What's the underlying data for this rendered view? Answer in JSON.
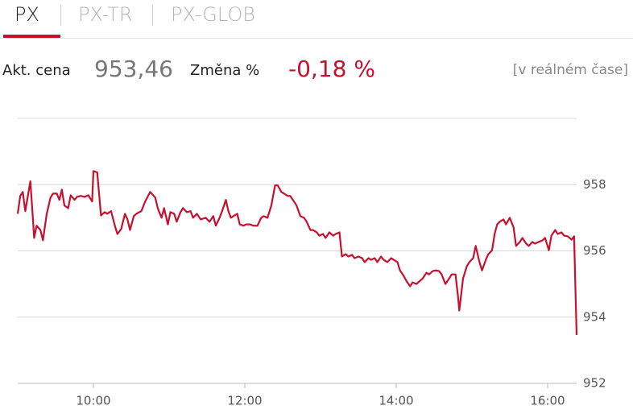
{
  "tabs": [
    "PX",
    "PX-TR",
    "PX-GLOB"
  ],
  "quote": {
    "price_label": "Akt. cena",
    "price": "953,46",
    "change_label": "Změna %",
    "change": "-0,18 %",
    "note": "[v reálném čase]"
  },
  "chart_data": {
    "type": "line",
    "x": [
      "09:00",
      "09:02",
      "09:04",
      "09:06",
      "09:10",
      "09:12",
      "09:13",
      "09:15",
      "09:18",
      "09:20",
      "09:23",
      "09:26",
      "09:28",
      "09:31",
      "09:33",
      "09:35",
      "09:37",
      "09:40",
      "09:42",
      "09:45",
      "09:47",
      "09:50",
      "09:53",
      "09:56",
      "09:59",
      "10:00",
      "10:03",
      "10:06",
      "10:09",
      "10:11",
      "10:14",
      "10:17",
      "10:19",
      "10:22",
      "10:25",
      "10:27",
      "10:29",
      "10:32",
      "10:34",
      "10:38",
      "10:41",
      "10:45",
      "10:49",
      "10:51",
      "10:54",
      "10:56",
      "10:59",
      "11:01",
      "11:04",
      "11:06",
      "11:09",
      "11:11",
      "11:14",
      "11:17",
      "11:19",
      "11:22",
      "11:25",
      "11:29",
      "11:32",
      "11:35",
      "11:37",
      "11:40",
      "11:42",
      "11:45",
      "11:47",
      "11:49",
      "11:51",
      "11:54",
      "11:56",
      "11:59",
      "12:01",
      "12:04",
      "12:07",
      "12:10",
      "12:13",
      "12:15",
      "12:18",
      "12:21",
      "12:24",
      "12:26",
      "12:29",
      "12:31",
      "12:34",
      "12:36",
      "12:39",
      "12:41",
      "12:44",
      "12:47",
      "12:49",
      "12:52",
      "12:54",
      "12:57",
      "12:59",
      "13:02",
      "13:04",
      "13:07",
      "13:10",
      "13:12",
      "13:15",
      "13:17",
      "13:20",
      "13:22",
      "13:25",
      "13:27",
      "13:30",
      "13:33",
      "13:35",
      "13:38",
      "13:40",
      "13:43",
      "13:45",
      "13:48",
      "13:50",
      "13:53",
      "13:56",
      "13:58",
      "14:01",
      "14:03",
      "14:06",
      "14:08",
      "14:11",
      "14:13",
      "14:16",
      "14:19",
      "14:21",
      "14:24",
      "14:26",
      "14:29",
      "14:31",
      "14:34",
      "14:36",
      "14:39",
      "14:42",
      "14:44",
      "14:47",
      "14:49",
      "14:50",
      "14:53",
      "14:56",
      "14:58",
      "15:01",
      "15:03",
      "15:06",
      "15:08",
      "15:11",
      "15:13",
      "15:16",
      "15:18",
      "15:20",
      "15:22",
      "15:25",
      "15:27",
      "15:30",
      "15:33",
      "15:35",
      "15:38",
      "15:40",
      "15:43",
      "15:45",
      "15:48",
      "15:50",
      "15:53",
      "15:56",
      "15:58",
      "16:01",
      "16:03",
      "16:06",
      "16:08",
      "16:11",
      "16:13",
      "16:16",
      "16:19",
      "16:21",
      "16:22",
      "16:23"
    ],
    "series": [
      {
        "color": "#c8102e",
        "values": [
          957.12,
          957.66,
          957.78,
          957.2,
          958.1,
          957.0,
          956.39,
          956.76,
          956.63,
          956.32,
          957.12,
          957.61,
          957.73,
          957.73,
          957.54,
          957.85,
          957.37,
          957.29,
          957.68,
          957.54,
          957.63,
          957.66,
          957.63,
          957.68,
          957.49,
          958.41,
          958.37,
          957.07,
          957.17,
          957.12,
          957.2,
          956.76,
          956.51,
          956.66,
          957.12,
          956.95,
          956.63,
          957.05,
          957.12,
          957.2,
          957.49,
          957.78,
          957.61,
          957.29,
          957.0,
          957.29,
          956.8,
          957.17,
          957.12,
          956.88,
          957.17,
          957.29,
          957.17,
          957.2,
          957.0,
          957.12,
          956.95,
          957.0,
          956.88,
          957.05,
          956.76,
          957.0,
          957.2,
          957.54,
          957.2,
          957.0,
          957.05,
          957.12,
          956.8,
          956.76,
          956.8,
          956.8,
          956.76,
          956.76,
          957.0,
          957.05,
          957.0,
          957.37,
          957.98,
          957.98,
          957.78,
          957.73,
          957.66,
          957.66,
          957.49,
          957.37,
          957.05,
          957.0,
          956.88,
          956.63,
          956.63,
          956.56,
          956.46,
          956.51,
          956.39,
          956.56,
          956.46,
          956.51,
          956.56,
          955.83,
          955.9,
          955.83,
          955.88,
          955.78,
          955.83,
          955.78,
          955.66,
          955.78,
          955.73,
          955.78,
          955.66,
          955.83,
          955.73,
          955.66,
          955.78,
          955.73,
          955.66,
          955.41,
          955.24,
          955.1,
          954.93,
          955.05,
          955.0,
          955.1,
          955.17,
          955.34,
          955.29,
          955.39,
          955.41,
          955.39,
          955.29,
          955.0,
          955.17,
          955.29,
          955.29,
          954.61,
          954.2,
          955.17,
          955.54,
          955.66,
          955.78,
          956.15,
          955.66,
          955.41,
          955.73,
          955.9,
          956.02,
          956.51,
          956.8,
          956.88,
          956.95,
          956.8,
          957.0,
          956.71,
          956.15,
          956.27,
          956.39,
          956.22,
          956.15,
          956.27,
          956.22,
          956.27,
          956.32,
          956.39,
          956.02,
          956.46,
          956.63,
          956.51,
          956.56,
          956.46,
          956.44,
          956.34,
          956.44,
          954.93,
          953.46
        ]
      }
    ],
    "xlim": [
      "09:00",
      "16:23"
    ],
    "xticks": [
      "10:00",
      "12:00",
      "14:00",
      "16:00"
    ],
    "ylim": [
      952,
      960
    ],
    "yticks": [
      952,
      954,
      956,
      958
    ],
    "grid": true
  }
}
